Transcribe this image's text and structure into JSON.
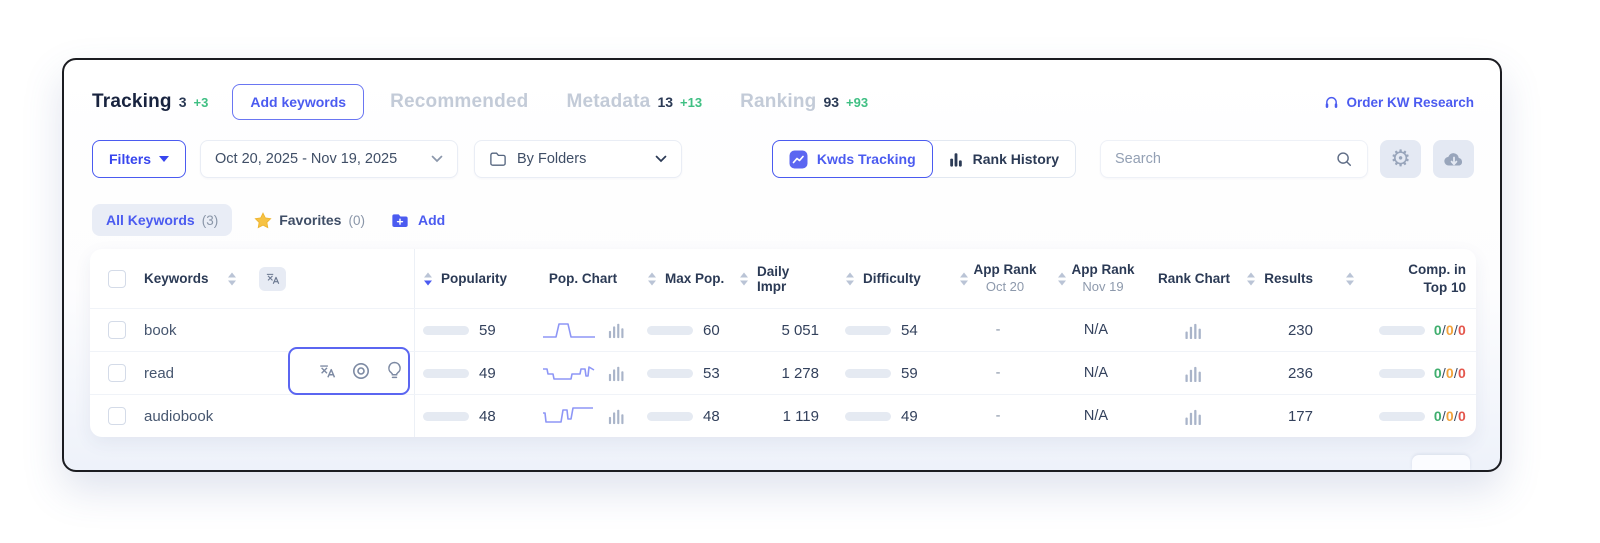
{
  "nav": {
    "items": [
      {
        "label": "Tracking",
        "count": "3",
        "delta": "+3"
      },
      {
        "label": "Recommended"
      },
      {
        "label": "Metadata",
        "count": "13",
        "delta": "+13"
      },
      {
        "label": "Ranking",
        "count": "93",
        "delta": "+93"
      }
    ],
    "add_keywords_label": "Add keywords",
    "order_link": "Order KW Research"
  },
  "filters": {
    "filters_label": "Filters",
    "date_range": "Oct 20, 2025 - Nov 19, 2025",
    "folders_label": "By Folders",
    "toggle": [
      {
        "label": "Kwds Tracking",
        "active": true
      },
      {
        "label": "Rank History",
        "active": false
      }
    ],
    "search_placeholder": "Search"
  },
  "tabs": {
    "all_keywords_label": "All Keywords",
    "all_keywords_count": "(3)",
    "favorites_label": "Favorites",
    "favorites_count": "(0)",
    "add_label": "Add"
  },
  "table": {
    "headers": {
      "keywords": "Keywords",
      "popularity": "Popularity",
      "pop_chart": "Pop. Chart",
      "max_pop": "Max Pop.",
      "daily_impr": "Daily Impr",
      "difficulty": "Difficulty",
      "app_rank_1_line1": "App Rank",
      "app_rank_1_line2": "Oct 20",
      "app_rank_2_line1": "App Rank",
      "app_rank_2_line2": "Nov 19",
      "rank_chart": "Rank Chart",
      "results": "Results",
      "comp_line1": "Comp. in",
      "comp_line2": "Top 10"
    },
    "rows": [
      {
        "keyword": "book",
        "popularity": 59,
        "max_pop": 60,
        "daily_impr": "5 051",
        "difficulty": 54,
        "app_rank_oct": "-",
        "app_rank_nov": "N/A",
        "results": "230",
        "comp": [
          "0",
          "0",
          "0"
        ],
        "spark": "2,19 15,19 18,6 27,6 30,19 54,19"
      },
      {
        "keyword": "read",
        "popularity": 49,
        "max_pop": 53,
        "daily_impr": "1 278",
        "difficulty": 59,
        "app_rank_oct": "-",
        "app_rank_nov": "N/A",
        "results": "236",
        "comp": [
          "0",
          "0",
          "0"
        ],
        "spark": "2,8 6,8 7,13 12,13 13,18 30,18 31,13 39,13 40,8 44,8 45,15 47,15 48,6 53,9"
      },
      {
        "keyword": "audiobook",
        "popularity": 48,
        "max_pop": 48,
        "daily_impr": "1 119",
        "difficulty": 49,
        "app_rank_oct": "-",
        "app_rank_nov": "N/A",
        "results": "177",
        "comp": [
          "0",
          "0",
          "0"
        ],
        "spark": "2,9 4,9 5,18 20,18 22,6 26,6 27,15 30,15 32,4 52,4"
      }
    ]
  },
  "colors": {
    "accent_blue": "#4b5bf0",
    "pill_yellow": "#f0c645",
    "delta_green": "#3fbf83",
    "comp_green": "#3fae6e",
    "comp_orange": "#f2a33c",
    "comp_red": "#e4574d"
  }
}
